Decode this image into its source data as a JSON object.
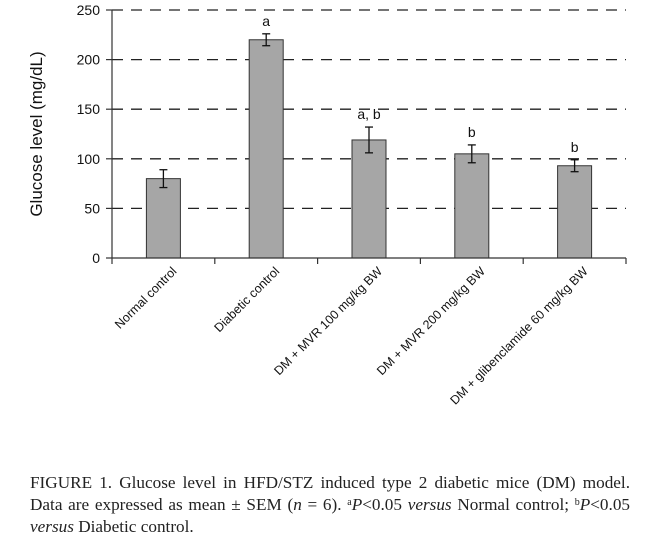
{
  "chart_data": {
    "type": "bar",
    "title": "",
    "xlabel": "",
    "ylabel": "Glucose level (mg/dL)",
    "ylim": [
      0,
      250
    ],
    "yticks": [
      0,
      50,
      100,
      150,
      200,
      250
    ],
    "grid": true,
    "categories": [
      "Normal control",
      "Diabetic control",
      "DM + MVR 100 mg/kg BW",
      "DM + MVR 200 mg/kg BW",
      "DM + glibenclamide 60 mg/kg BW"
    ],
    "values": [
      80,
      220,
      119,
      105,
      93
    ],
    "errors": [
      9,
      6,
      13,
      9,
      6
    ],
    "annotations": [
      "",
      "a",
      "a, b",
      "b",
      "b"
    ],
    "bar_color": "#a6a6a6",
    "bar_edge_color": "#333333"
  },
  "caption": {
    "prefix": "FIGURE 1. Glucose level in HFD/STZ induced type 2 diabetic mice (DM) model. Data are expressed as mean ± SEM (",
    "n_var": "n",
    "n_rest": " = 6). ",
    "sup_a": "a",
    "p_a": "P",
    "text_a": "<0.05 ",
    "versus_1": "versus",
    "after_a": " Normal control; ",
    "sup_b": "b",
    "p_b": "P",
    "text_b": "<0.05 ",
    "versus_2": "versus",
    "after_b": " Diabetic control."
  }
}
